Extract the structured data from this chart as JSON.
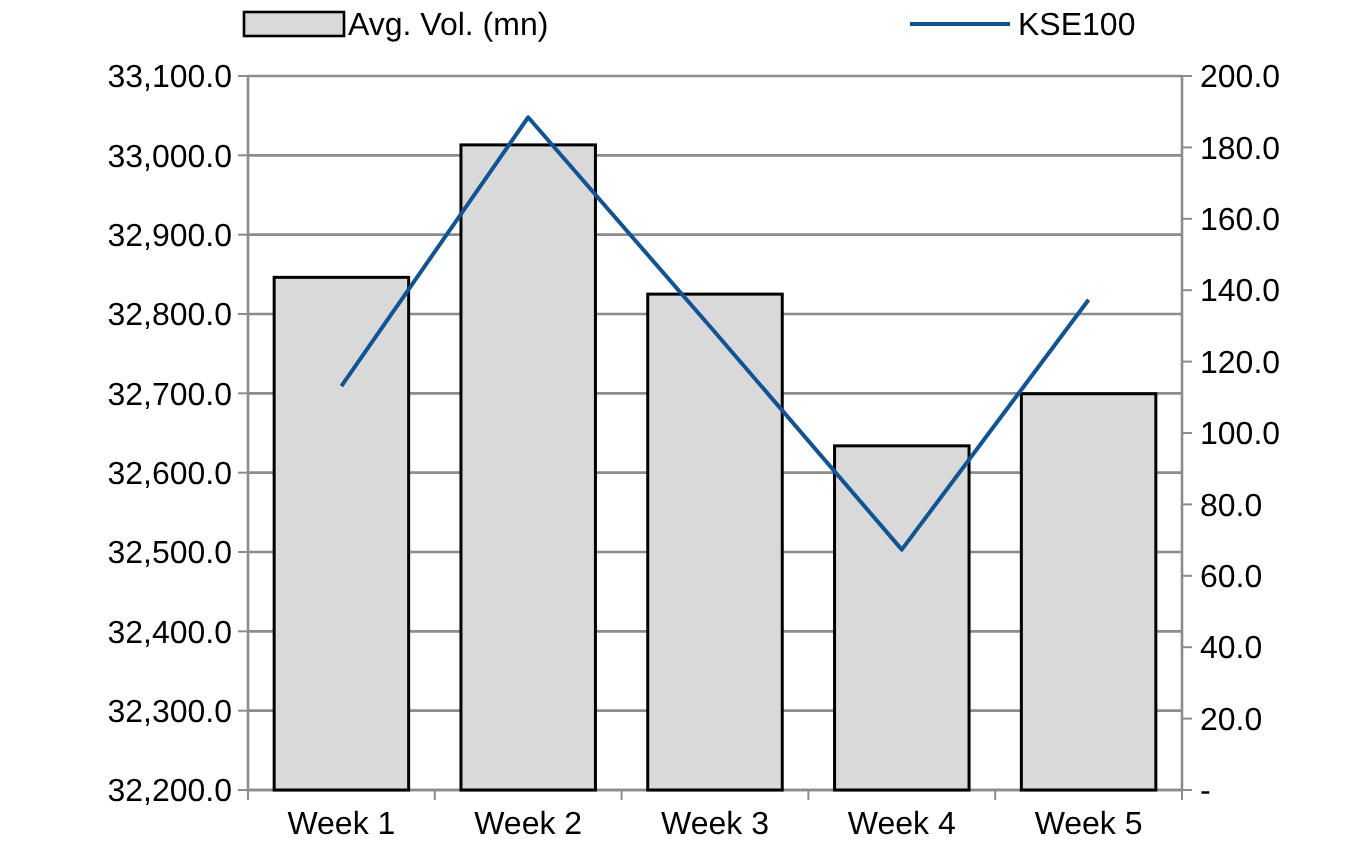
{
  "chart_data": {
    "type": "bar",
    "categories": [
      "Week 1",
      "Week 2",
      "Week 3",
      "Week 4",
      "Week 5"
    ],
    "series": [
      {
        "name": "Avg. Vol. (mn)",
        "axis": "y2",
        "color": "#d9d9d9",
        "values": [
          143.6,
          180.7,
          138.9,
          96.4,
          111.0
        ]
      },
      {
        "name": "KSE100",
        "type": "line",
        "axis": "y",
        "color": "#0f5494",
        "values": [
          32709,
          33048,
          32777,
          32503,
          32818
        ]
      }
    ],
    "ylim": [
      32200,
      33100
    ],
    "yticks": [
      {
        "value": 32200,
        "label": "32,200.0"
      },
      {
        "value": 32300,
        "label": "32,300.0"
      },
      {
        "value": 32400,
        "label": "32,400.0"
      },
      {
        "value": 32500,
        "label": "32,500.0"
      },
      {
        "value": 32600,
        "label": "32,600.0"
      },
      {
        "value": 32700,
        "label": "32,700.0"
      },
      {
        "value": 32800,
        "label": "32,800.0"
      },
      {
        "value": 32900,
        "label": "32,900.0"
      },
      {
        "value": 33000,
        "label": "33,000.0"
      },
      {
        "value": 33100,
        "label": "33,100.0"
      }
    ],
    "y2lim": [
      0,
      200
    ],
    "y2ticks": [
      {
        "value": 0,
        "label": "-"
      },
      {
        "value": 20,
        "label": "20.0"
      },
      {
        "value": 40,
        "label": "40.0"
      },
      {
        "value": 60,
        "label": "60.0"
      },
      {
        "value": 80,
        "label": "80.0"
      },
      {
        "value": 100,
        "label": "100.0"
      },
      {
        "value": 120,
        "label": "120.0"
      },
      {
        "value": 140,
        "label": "140.0"
      },
      {
        "value": 160,
        "label": "160.0"
      },
      {
        "value": 180,
        "label": "180.0"
      },
      {
        "value": 200,
        "label": "200.0"
      }
    ],
    "grid": "y",
    "legend": "top",
    "marker": "none",
    "line_style": "solid"
  }
}
